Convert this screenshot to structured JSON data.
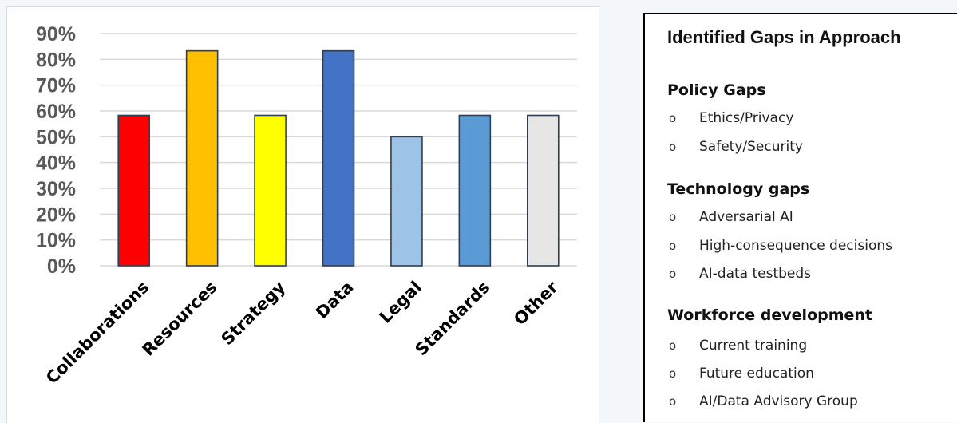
{
  "chart_data": {
    "type": "bar",
    "categories": [
      "Collaborations",
      "Resources",
      "Strategy",
      "Data",
      "Legal",
      "Standards",
      "Other"
    ],
    "values": [
      58.3,
      83.3,
      58.3,
      83.3,
      50,
      58.3,
      58.3
    ],
    "colors": [
      "#ff0000",
      "#ffc000",
      "#ffff00",
      "#4472c4",
      "#9dc3e6",
      "#5b9bd5",
      "#e7e6e6"
    ],
    "ylim": [
      0,
      90
    ],
    "yticks": [
      "0%",
      "10%",
      "20%",
      "30%",
      "40%",
      "50%",
      "60%",
      "70%",
      "80%",
      "90%"
    ],
    "grid": true,
    "title": "",
    "xlabel": "",
    "ylabel": ""
  },
  "gaps": {
    "title": "Identified Gaps in Approach",
    "bullet": "o",
    "sections": [
      {
        "heading": "Policy Gaps",
        "items": [
          "Ethics/Privacy",
          "Safety/Security"
        ]
      },
      {
        "heading": "Technology gaps",
        "items": [
          "Adversarial AI",
          "High-consequence decisions",
          "AI-data testbeds"
        ]
      },
      {
        "heading": "Workforce development",
        "items": [
          "Current training",
          "Future education",
          "AI/Data Advisory Group"
        ]
      }
    ]
  }
}
